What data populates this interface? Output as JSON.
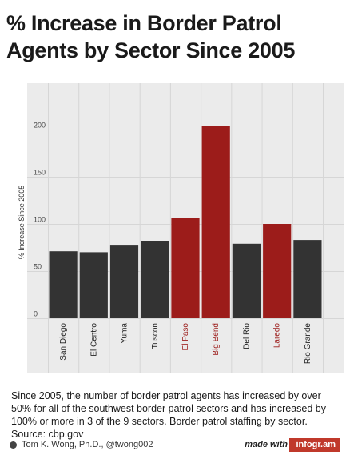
{
  "title": "% Increase in Border Patrol Agents by Sector Since 2005",
  "caption": "Since 2005, the number of border patrol agents has increased by over 50% for all of the southwest border patrol sectors and has increased by 100% or more in 3 of the 9 sectors. Border patrol staffing by sector. Source: cbp.gov",
  "footer": {
    "author": "Tom K. Wong, Ph.D., @twong002",
    "made_with": "made with",
    "logo": "infogr.am"
  },
  "colors": {
    "bar_default": "#333333",
    "bar_highlight": "#9c1c1a",
    "plot_bg": "#ebebeb",
    "grid": "#d6d6d6"
  },
  "icons": [
    "author-icon"
  ],
  "chart_data": {
    "type": "bar",
    "ylabel": "% Increase Since 2005",
    "xlabel": "",
    "ylim": [
      0,
      220
    ],
    "yticks": [
      0,
      50,
      100,
      150,
      200
    ],
    "grid": true,
    "categories": [
      "San Diego",
      "El Centro",
      "Yuma",
      "Tuscon",
      "El Paso",
      "Big Bend",
      "Del Rio",
      "Laredo",
      "Rio Grande"
    ],
    "values": [
      71,
      70,
      77,
      82,
      106,
      204,
      79,
      100,
      83
    ],
    "highlighted": [
      "El Paso",
      "Big Bend",
      "Laredo"
    ]
  }
}
